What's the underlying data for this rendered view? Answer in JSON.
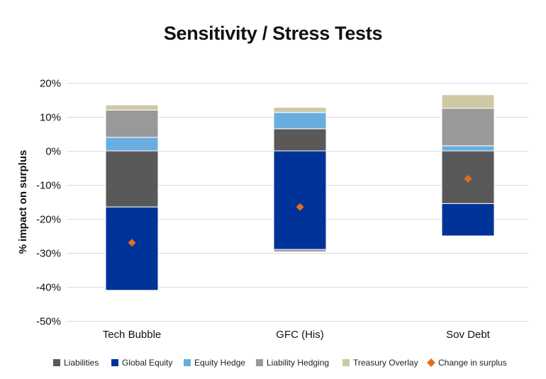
{
  "chart_data": {
    "type": "bar",
    "stacked": true,
    "title": "Sensitivity / Stress Tests",
    "xlabel": "",
    "ylabel": "% impact on surplus",
    "ylim": [
      -50,
      20
    ],
    "yticks": [
      20,
      10,
      0,
      -10,
      -20,
      -30,
      -40,
      -50
    ],
    "ytick_labels": [
      "20%",
      "10%",
      "0%",
      "-10%",
      "-20%",
      "-30%",
      "-40%",
      "-50%"
    ],
    "grid": true,
    "legend_position": "bottom",
    "categories": [
      "Tech Bubble",
      "GFC (His)",
      "Sov Debt"
    ],
    "series": [
      {
        "name": "Liabilities",
        "color": "#595959",
        "values": [
          -16.5,
          6.5,
          -15.5
        ]
      },
      {
        "name": "Global Equity",
        "color": "#003399",
        "values": [
          -24.5,
          -29.0,
          -9.5
        ]
      },
      {
        "name": "Equity Hedge",
        "color": "#6aaee0",
        "values": [
          4.0,
          4.8,
          1.5
        ]
      },
      {
        "name": "Liability Hedging",
        "color": "#999999",
        "values": [
          8.0,
          -0.7,
          11.0
        ]
      },
      {
        "name": "Treasury Overlay",
        "color": "#cdc9a5",
        "values": [
          1.5,
          1.5,
          4.0
        ]
      }
    ],
    "markers": {
      "name": "Change in surplus",
      "color": "#e06e1e",
      "values": [
        -27.0,
        -16.5,
        -8.2
      ]
    }
  }
}
